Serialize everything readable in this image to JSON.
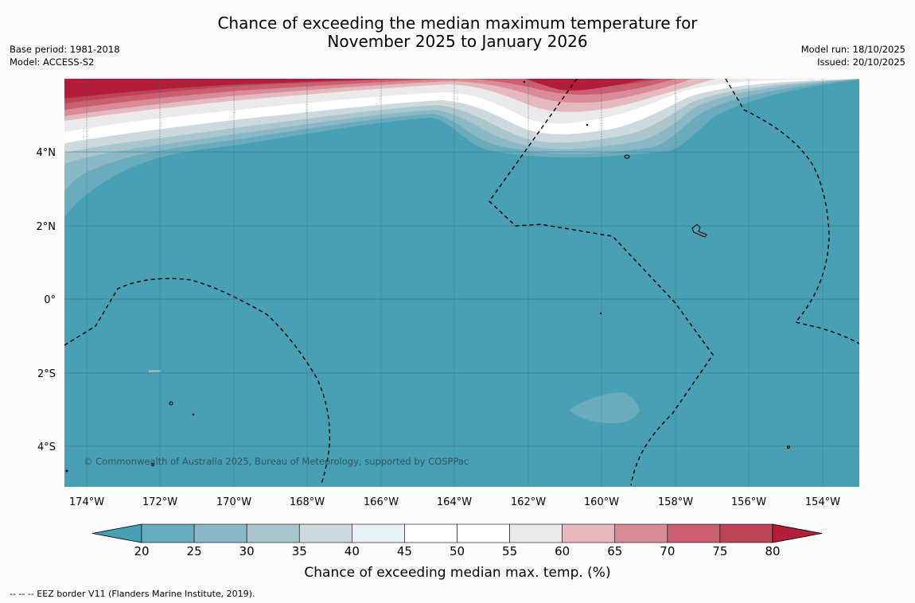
{
  "title": {
    "line1": "Chance of exceeding the median maximum temperature for",
    "line2": "November 2025 to January 2026"
  },
  "meta_left": {
    "base_period": "Base period: 1981-2018",
    "model": "Model: ACCESS-S2"
  },
  "meta_right": {
    "model_run": "Model run: 18/10/2025",
    "issued": "Issued: 20/10/2025"
  },
  "map": {
    "lon_range": [
      -174.6,
      -152.9
    ],
    "lat_range": [
      -5.1,
      5.75
    ],
    "lon_ticks": [
      "174°W",
      "172°W",
      "170°W",
      "168°W",
      "166°W",
      "164°W",
      "162°W",
      "160°W",
      "158°W",
      "156°W",
      "154°W"
    ],
    "lon_tick_values": [
      -174,
      -172,
      -170,
      -168,
      -166,
      -164,
      -162,
      -160,
      -158,
      -156,
      -154
    ],
    "lat_ticks": [
      "4°N",
      "2°N",
      "0°",
      "2°S",
      "4°S"
    ],
    "lat_tick_values": [
      4,
      2,
      0,
      -2,
      -4
    ],
    "copyright": "© Commonwealth of Australia 2025, Bureau of Meteorology, supported by COSPPac",
    "colors": {
      "base": "#48a0b2",
      "red_dark": "#b21e3a",
      "gridline": "#2e6a7a"
    }
  },
  "colorbar": {
    "ticks": [
      "20",
      "25",
      "30",
      "35",
      "40",
      "45",
      "50",
      "55",
      "60",
      "65",
      "70",
      "75",
      "80"
    ],
    "colors": [
      "#48a0b2",
      "#6aacbc",
      "#8ab8c4",
      "#a9c6cd",
      "#ccd9dd",
      "#eaf1f2",
      "#ffffff",
      "#ffffff",
      "#eaeaea",
      "#e4b9bf",
      "#d98b96",
      "#c8606f",
      "#bb4456",
      "#b21e3a"
    ],
    "label": "Chance of exceeding median max. temp. (%)"
  },
  "footnote": "--  --  -- EEZ border V11 (Flanders Marine Institute, 2019)."
}
